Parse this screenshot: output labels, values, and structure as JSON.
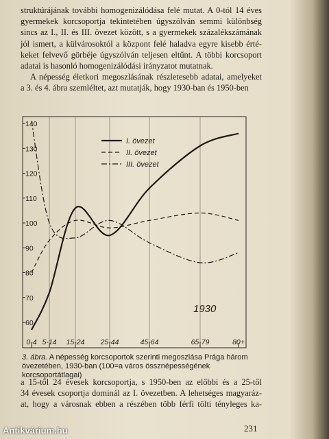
{
  "text_top": [
    "struktúrájának további homogenizálódása felé mutat. A 0-tól 14 éves",
    "gyermekek korcsoportja tekintetében úgyszólván semmi különbség",
    "sincs az I., II. és III. övezet között, s a gyermekek százalékszámának",
    "jól ismert, a külvárosoktól a központ felé haladva egyre kisebb érté-",
    "keket felvevő görbéje úgyszólván teljesen eltűnt. A többi korcsoport",
    "adatai is hasonló homogenizálódási irányzatot mutatnak.",
    "A népesség életkori megoszlásának részletesebb adatai, amelyeket",
    "a 3. és 4. ábra szemléltet, azt mutatják, hogy 1930-ban és 1950-ben"
  ],
  "chart_data": {
    "type": "line",
    "annotation": "1930",
    "categories": [
      "0-4",
      "5-14",
      "15-24",
      "25-44",
      "45-64",
      "65-79",
      "80+"
    ],
    "series": [
      {
        "name": "I. övezet",
        "color": "#1e1a16",
        "dash": "solid",
        "values": [
          57,
          72,
          106,
          95,
          114,
          131,
          136
        ]
      },
      {
        "name": "II. övezet",
        "color": "#1e1a16",
        "dash": "dashed",
        "values": [
          80,
          93,
          101,
          98,
          101,
          104,
          101
        ]
      },
      {
        "name": "III. övezet",
        "color": "#1e1a16",
        "dash": "dashdot",
        "values": [
          141,
          100,
          94,
          101,
          92,
          84,
          88
        ]
      }
    ],
    "ylim": [
      55,
      143
    ],
    "yticks": [
      60,
      70,
      80,
      90,
      100,
      110,
      120,
      130,
      140
    ],
    "grid": true
  },
  "caption": {
    "label": "3. ábra.",
    "text": "A népesség korcsoportok szerinti megoszlása Prága három övezetében, 1930-ban (100=a város össznépességének korcsoportátlagai)"
  },
  "text_bottom": [
    "a 15-től 24 évesek korcsoportja, s 1950-ben az előbbi és a 25-től",
    "34 évesek csoportja dominál az I. övezetben. A lehetséges magyaráz-",
    "at, hogy a városnak ebben a részében több férfi tölti tényleges ka-"
  ],
  "page_number": "231",
  "watermark": "Antikvárium.hu"
}
